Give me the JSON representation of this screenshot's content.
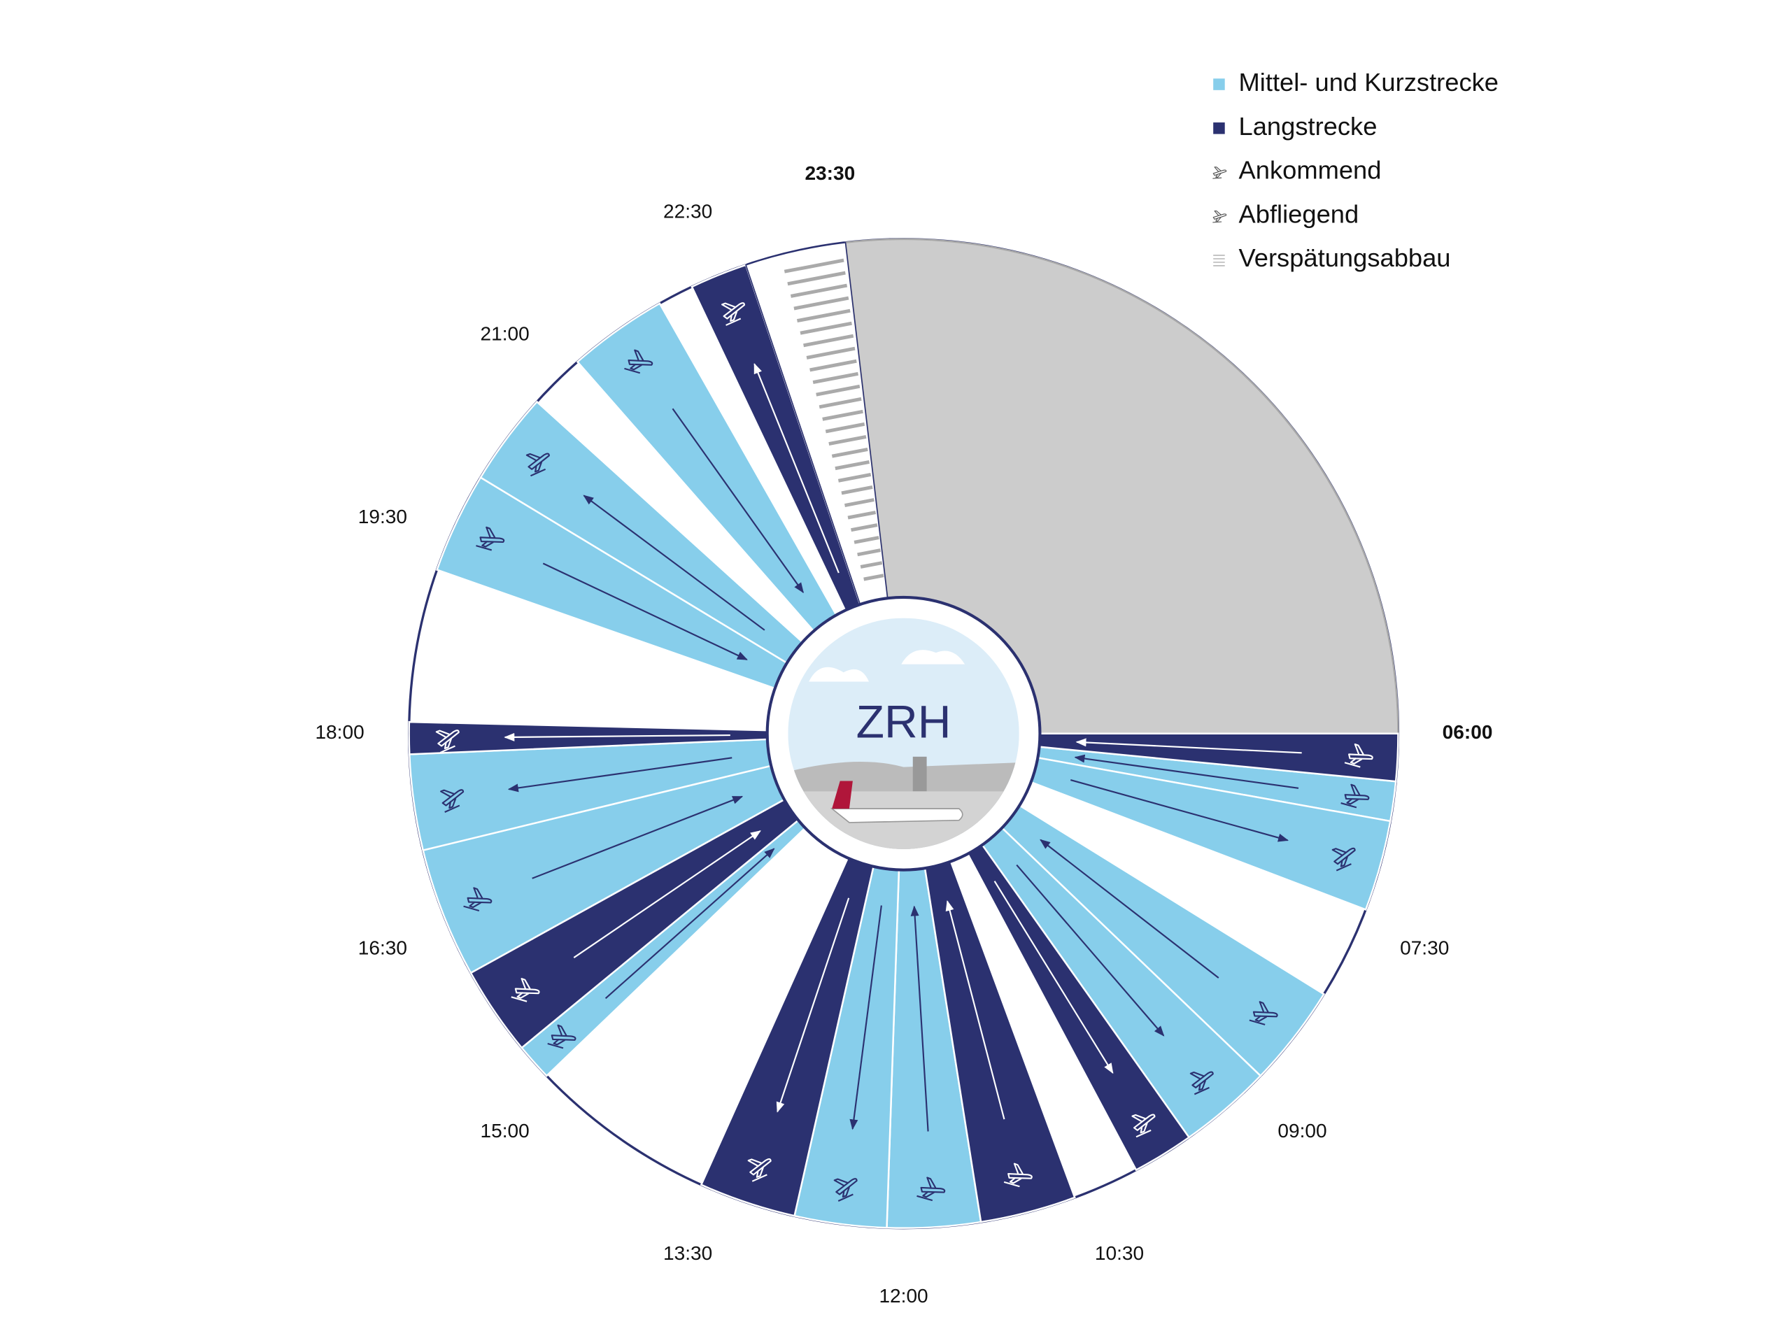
{
  "center": {
    "title": "ZRH"
  },
  "legend": {
    "items": [
      {
        "label": "Mittel- und Kurzstrecke",
        "color": "#87ceeb",
        "sectors": [
          {
            "from": 6.37,
            "to": 6.68,
            "inbound": true
          },
          {
            "from": 6.68,
            "to": 7.39,
            "inbound": false
          },
          {
            "from": 8.12,
            "to": 8.92,
            "inbound": true
          },
          {
            "from": 8.92,
            "to": 9.65,
            "inbound": false
          },
          {
            "from": 11.4,
            "to": 12.13,
            "inbound": true
          },
          {
            "from": 12.13,
            "to": 12.85,
            "inbound": false
          },
          {
            "from": 15.08,
            "to": 15.37,
            "inbound": true
          },
          {
            "from": 16.07,
            "to": 17.09,
            "inbound": true
          },
          {
            "from": 17.09,
            "to": 17.84,
            "inbound": false
          },
          {
            "from": 19.29,
            "to": 20.08,
            "inbound": true
          },
          {
            "from": 20.08,
            "to": 20.81,
            "inbound": false
          },
          {
            "from": 21.25,
            "to": 22.03,
            "inbound": true
          }
        ]
      },
      {
        "label": "Langstrecke",
        "color": "#2b3170",
        "sectors": [
          {
            "from": 6.0,
            "to": 6.37,
            "inbound": true
          },
          {
            "from": 9.65,
            "to": 10.13,
            "inbound": false
          },
          {
            "from": 10.65,
            "to": 11.4,
            "inbound": true
          },
          {
            "from": 12.85,
            "to": 13.61,
            "inbound": false
          },
          {
            "from": 15.37,
            "to": 16.07,
            "inbound": true
          },
          {
            "from": 17.84,
            "to": 18.09,
            "inbound": false
          },
          {
            "from": 22.31,
            "to": 22.76,
            "inbound": false
          }
        ]
      },
      {
        "label": "Ankommend"
      },
      {
        "label": "Abfliegend"
      },
      {
        "label": "Verspätungsabbau",
        "color": "#aaaaaa",
        "sectors": [
          {
            "from": 22.76,
            "to": 23.55
          }
        ]
      }
    ]
  },
  "closed": {
    "from": 23.55,
    "to": 6.0,
    "color": "#cccccc"
  },
  "time_labels": [
    {
      "label": "06:00",
      "hour": 6,
      "bold": true
    },
    {
      "label": "07:30",
      "hour": 7.5
    },
    {
      "label": "09:00",
      "hour": 9
    },
    {
      "label": "10:30",
      "hour": 10.5
    },
    {
      "label": "12:00",
      "hour": 12
    },
    {
      "label": "13:30",
      "hour": 13.5
    },
    {
      "label": "15:00",
      "hour": 15
    },
    {
      "label": "16:30",
      "hour": 16.5
    },
    {
      "label": "18:00",
      "hour": 18
    },
    {
      "label": "19:30",
      "hour": 19.5
    },
    {
      "label": "21:00",
      "hour": 21
    },
    {
      "label": "22:30",
      "hour": 22.5
    },
    {
      "label": "23:30",
      "hour": 23.5,
      "bold": true
    }
  ]
}
